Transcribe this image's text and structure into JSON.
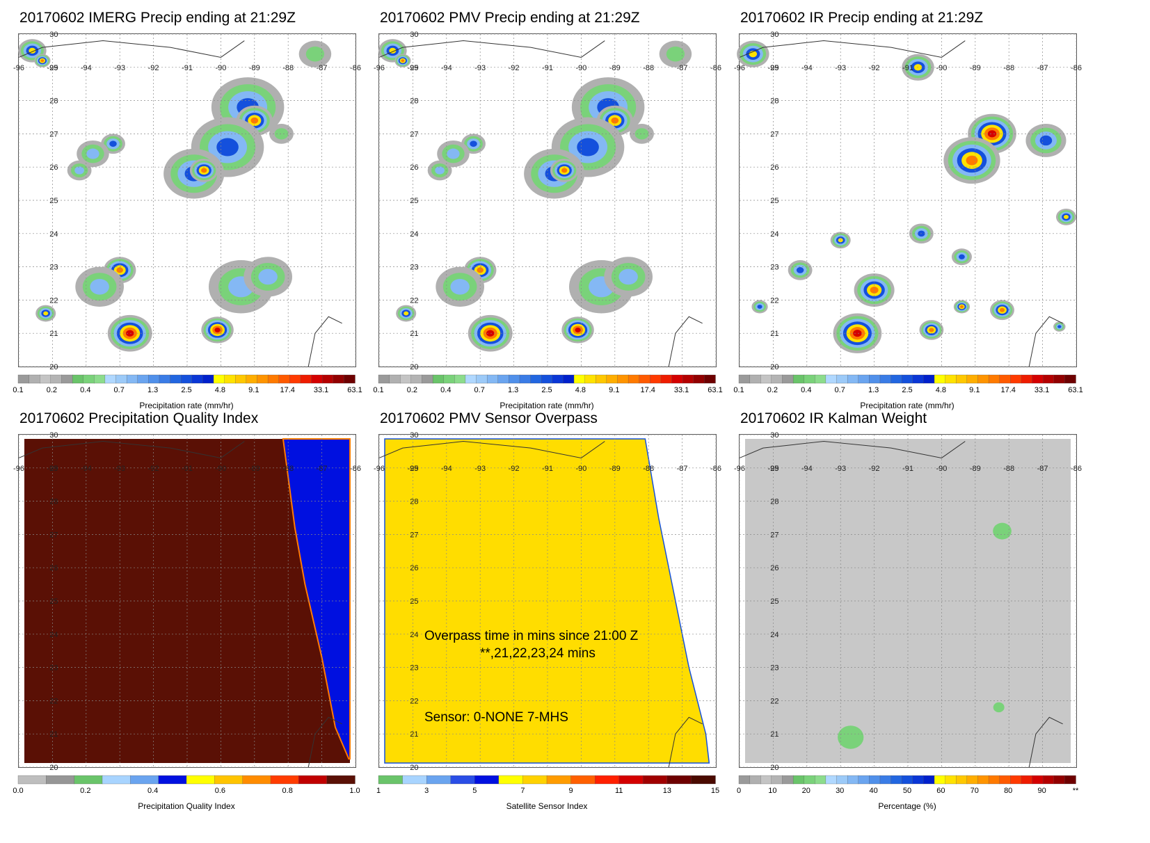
{
  "panels": [
    {
      "id": "imerg",
      "title": "20170602 IMERG Precip ending at 21:29Z",
      "field": "precip",
      "colorbar": {
        "colors": [
          "#9a9a9a",
          "#b0b0b0",
          "#c4c4c4",
          "#b4b4b4",
          "#9a9a9a",
          "#6ac46a",
          "#7ad27a",
          "#8cdc8c",
          "#b0d8ff",
          "#9ccaf8",
          "#84b8f4",
          "#6aa4ef",
          "#5090ea",
          "#3a7ce6",
          "#2266e0",
          "#1450dc",
          "#0a36d6",
          "#0020cc",
          "#ffff00",
          "#ffe200",
          "#ffc800",
          "#ffae00",
          "#ff9400",
          "#ff7a00",
          "#ff5a00",
          "#ff3a00",
          "#ee1c00",
          "#d40000",
          "#b40000",
          "#920000",
          "#6e0000"
        ],
        "ticks": [
          "0.1",
          "0.2",
          "0.4",
          "0.7",
          "1.3",
          "2.5",
          "4.8",
          "9.1",
          "17.4",
          "33.1",
          "63.1"
        ],
        "label": "Precipitation rate (mm/hr)"
      }
    },
    {
      "id": "pmv",
      "title": "20170602 PMV Precip ending at 21:29Z",
      "field": "precip",
      "colorbar": {
        "colors": [
          "#9a9a9a",
          "#b0b0b0",
          "#c4c4c4",
          "#b4b4b4",
          "#9a9a9a",
          "#6ac46a",
          "#7ad27a",
          "#8cdc8c",
          "#b0d8ff",
          "#9ccaf8",
          "#84b8f4",
          "#6aa4ef",
          "#5090ea",
          "#3a7ce6",
          "#2266e0",
          "#1450dc",
          "#0a36d6",
          "#0020cc",
          "#ffff00",
          "#ffe200",
          "#ffc800",
          "#ffae00",
          "#ff9400",
          "#ff7a00",
          "#ff5a00",
          "#ff3a00",
          "#ee1c00",
          "#d40000",
          "#b40000",
          "#920000",
          "#6e0000"
        ],
        "ticks": [
          "0.1",
          "0.2",
          "0.4",
          "0.7",
          "1.3",
          "2.5",
          "4.8",
          "9.1",
          "17.4",
          "33.1",
          "63.1"
        ],
        "label": "Precipitation rate (mm/hr)"
      }
    },
    {
      "id": "ir",
      "title": "20170602 IR Precip ending at 21:29Z",
      "field": "precip",
      "colorbar": {
        "colors": [
          "#9a9a9a",
          "#b0b0b0",
          "#c4c4c4",
          "#b4b4b4",
          "#9a9a9a",
          "#6ac46a",
          "#7ad27a",
          "#8cdc8c",
          "#b0d8ff",
          "#9ccaf8",
          "#84b8f4",
          "#6aa4ef",
          "#5090ea",
          "#3a7ce6",
          "#2266e0",
          "#1450dc",
          "#0a36d6",
          "#0020cc",
          "#ffff00",
          "#ffe200",
          "#ffc800",
          "#ffae00",
          "#ff9400",
          "#ff7a00",
          "#ff5a00",
          "#ff3a00",
          "#ee1c00",
          "#d40000",
          "#b40000",
          "#920000",
          "#6e0000"
        ],
        "ticks": [
          "0.1",
          "0.2",
          "0.4",
          "0.7",
          "1.3",
          "2.5",
          "4.8",
          "9.1",
          "17.4",
          "33.1",
          "63.1"
        ],
        "label": "Precipitation rate (mm/hr)"
      }
    },
    {
      "id": "pqi",
      "title": "20170602 Precipitation Quality Index",
      "field": "quality",
      "colorbar": {
        "colors": [
          "#bebebe",
          "#969696",
          "#6ac46a",
          "#a8d4ff",
          "#6aa4ef",
          "#0010e0",
          "#ffff00",
          "#ffc400",
          "#ff8c00",
          "#ff3c00",
          "#c00000",
          "#5a1005"
        ],
        "ticks": [
          "0.0",
          "0.2",
          "0.4",
          "0.6",
          "0.8",
          "1.0"
        ],
        "label": "Precipitation Quality Index"
      }
    },
    {
      "id": "sensor",
      "title": "20170602 PMV Sensor Overpass",
      "field": "sensor",
      "annotation": {
        "line1": "Overpass time in mins since 21:00 Z",
        "line2": "**,21,22,23,24 mins",
        "sensor": "Sensor:   0-NONE  7-MHS"
      },
      "colorbar": {
        "colors": [
          "#6ac46a",
          "#a8d4ff",
          "#6aa4ef",
          "#2a4ee6",
          "#0010e0",
          "#ffff00",
          "#ffd200",
          "#ff9c00",
          "#ff6000",
          "#ff2000",
          "#d40000",
          "#a00000",
          "#6e0000",
          "#4a0a00"
        ],
        "ticks": [
          "1",
          "3",
          "5",
          "7",
          "9",
          "11",
          "13",
          "15"
        ],
        "label": "Satellite Sensor Index"
      }
    },
    {
      "id": "kalman",
      "title": "20170602 IR Kalman Weight",
      "field": "kalman",
      "colorbar": {
        "colors": [
          "#9a9a9a",
          "#b0b0b0",
          "#c4c4c4",
          "#b4b4b4",
          "#9a9a9a",
          "#6ac46a",
          "#7ad27a",
          "#8cdc8c",
          "#b0d8ff",
          "#9ccaf8",
          "#84b8f4",
          "#6aa4ef",
          "#5090ea",
          "#3a7ce6",
          "#2266e0",
          "#1450dc",
          "#0a36d6",
          "#0020cc",
          "#ffff00",
          "#ffe200",
          "#ffc800",
          "#ffae00",
          "#ff9400",
          "#ff7a00",
          "#ff5a00",
          "#ff3a00",
          "#ee1c00",
          "#d40000",
          "#b40000",
          "#920000",
          "#6e0000"
        ],
        "ticks": [
          "0",
          "10",
          "20",
          "30",
          "40",
          "50",
          "60",
          "70",
          "80",
          "90",
          "**"
        ],
        "label": "Percentage (%)"
      }
    }
  ],
  "axes": {
    "lon_labels": [
      "-96",
      "-95",
      "-94",
      "-93",
      "-92",
      "-91",
      "-90",
      "-89",
      "-88",
      "-87",
      "-86"
    ],
    "lat_labels": [
      "20",
      "21",
      "22",
      "23",
      "24",
      "25",
      "26",
      "27",
      "28",
      "29",
      "30"
    ],
    "lon_range": [
      -96,
      -86
    ],
    "lat_range": [
      20,
      30
    ]
  },
  "fields": {
    "precip_imerg": [
      {
        "lon": -95.6,
        "lat": 29.5,
        "r": 0.35,
        "lvl": 4
      },
      {
        "lon": -95.3,
        "lat": 29.2,
        "r": 0.2,
        "lvl": 5
      },
      {
        "lon": -89.2,
        "lat": 27.8,
        "r": 0.9,
        "lvl": 3
      },
      {
        "lon": -89.0,
        "lat": 27.4,
        "r": 0.45,
        "lvl": 5
      },
      {
        "lon": -89.8,
        "lat": 26.6,
        "r": 0.9,
        "lvl": 3
      },
      {
        "lon": -90.8,
        "lat": 25.8,
        "r": 0.75,
        "lvl": 3
      },
      {
        "lon": -90.5,
        "lat": 25.9,
        "r": 0.35,
        "lvl": 5
      },
      {
        "lon": -93.2,
        "lat": 26.7,
        "r": 0.3,
        "lvl": 3
      },
      {
        "lon": -93.8,
        "lat": 26.4,
        "r": 0.4,
        "lvl": 2
      },
      {
        "lon": -94.2,
        "lat": 25.9,
        "r": 0.3,
        "lvl": 2
      },
      {
        "lon": -93.0,
        "lat": 22.9,
        "r": 0.4,
        "lvl": 5
      },
      {
        "lon": -93.6,
        "lat": 22.4,
        "r": 0.6,
        "lvl": 2
      },
      {
        "lon": -92.7,
        "lat": 21.0,
        "r": 0.55,
        "lvl": 6
      },
      {
        "lon": -90.1,
        "lat": 21.1,
        "r": 0.4,
        "lvl": 6
      },
      {
        "lon": -89.4,
        "lat": 22.4,
        "r": 0.8,
        "lvl": 2
      },
      {
        "lon": -88.6,
        "lat": 22.7,
        "r": 0.6,
        "lvl": 2
      },
      {
        "lon": -95.2,
        "lat": 21.6,
        "r": 0.25,
        "lvl": 4
      },
      {
        "lon": -88.2,
        "lat": 27.0,
        "r": 0.3,
        "lvl": 1
      },
      {
        "lon": -87.2,
        "lat": 29.4,
        "r": 0.4,
        "lvl": 1
      }
    ],
    "precip_ir": [
      {
        "lon": -95.6,
        "lat": 29.4,
        "r": 0.4,
        "lvl": 4
      },
      {
        "lon": -90.7,
        "lat": 29.0,
        "r": 0.4,
        "lvl": 4
      },
      {
        "lon": -88.5,
        "lat": 27.0,
        "r": 0.6,
        "lvl": 6
      },
      {
        "lon": -89.1,
        "lat": 26.2,
        "r": 0.7,
        "lvl": 5
      },
      {
        "lon": -86.9,
        "lat": 26.8,
        "r": 0.5,
        "lvl": 3
      },
      {
        "lon": -92.5,
        "lat": 21.0,
        "r": 0.6,
        "lvl": 6
      },
      {
        "lon": -92.0,
        "lat": 22.3,
        "r": 0.5,
        "lvl": 5
      },
      {
        "lon": -90.3,
        "lat": 21.1,
        "r": 0.3,
        "lvl": 5
      },
      {
        "lon": -88.2,
        "lat": 21.7,
        "r": 0.3,
        "lvl": 5
      },
      {
        "lon": -89.4,
        "lat": 21.8,
        "r": 0.2,
        "lvl": 5
      },
      {
        "lon": -94.2,
        "lat": 22.9,
        "r": 0.3,
        "lvl": 3
      },
      {
        "lon": -93.0,
        "lat": 23.8,
        "r": 0.25,
        "lvl": 4
      },
      {
        "lon": -90.6,
        "lat": 24.0,
        "r": 0.3,
        "lvl": 3
      },
      {
        "lon": -89.4,
        "lat": 23.3,
        "r": 0.25,
        "lvl": 3
      },
      {
        "lon": -86.3,
        "lat": 24.5,
        "r": 0.25,
        "lvl": 4
      },
      {
        "lon": -95.4,
        "lat": 21.8,
        "r": 0.2,
        "lvl": 3
      },
      {
        "lon": -86.5,
        "lat": 21.2,
        "r": 0.15,
        "lvl": 3
      }
    ],
    "kalman_green": [
      {
        "lon": -92.7,
        "lat": 20.9,
        "r": 0.35
      },
      {
        "lon": -88.2,
        "lat": 27.1,
        "r": 0.25
      },
      {
        "lon": -88.3,
        "lat": 21.8,
        "r": 0.15
      }
    ]
  },
  "styles": {
    "grid": "#888888",
    "coast": "#333333",
    "pqi_main": "#5a1005",
    "pqi_right": "#0010e0",
    "sensor_main": "#ffdd00"
  }
}
